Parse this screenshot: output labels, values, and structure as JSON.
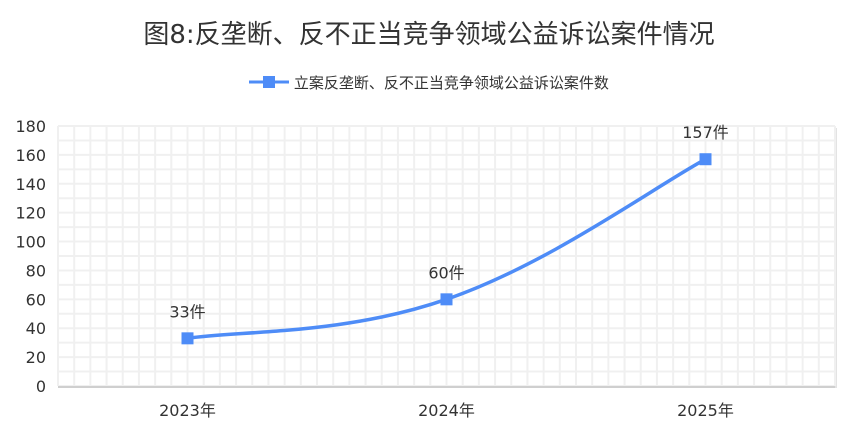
{
  "chart_data": {
    "type": "line",
    "title": "图8:反垄断、反不正当竞争领域公益诉讼案件情况",
    "categories": [
      "2023年",
      "2024年",
      "2025年"
    ],
    "series": [
      {
        "name": "立案反垄断、反不正当竞争领域公益诉讼案件数",
        "values": [
          33,
          60,
          157
        ],
        "data_labels": [
          "33件",
          "60件",
          "157件"
        ],
        "color": "#4e8cf7"
      }
    ],
    "ylim": [
      0,
      180
    ],
    "yticks": [
      0,
      20,
      40,
      60,
      80,
      100,
      120,
      140,
      160,
      180
    ],
    "grid": true,
    "smooth": true,
    "legend": "top-center",
    "xlabel": "",
    "ylabel": ""
  }
}
